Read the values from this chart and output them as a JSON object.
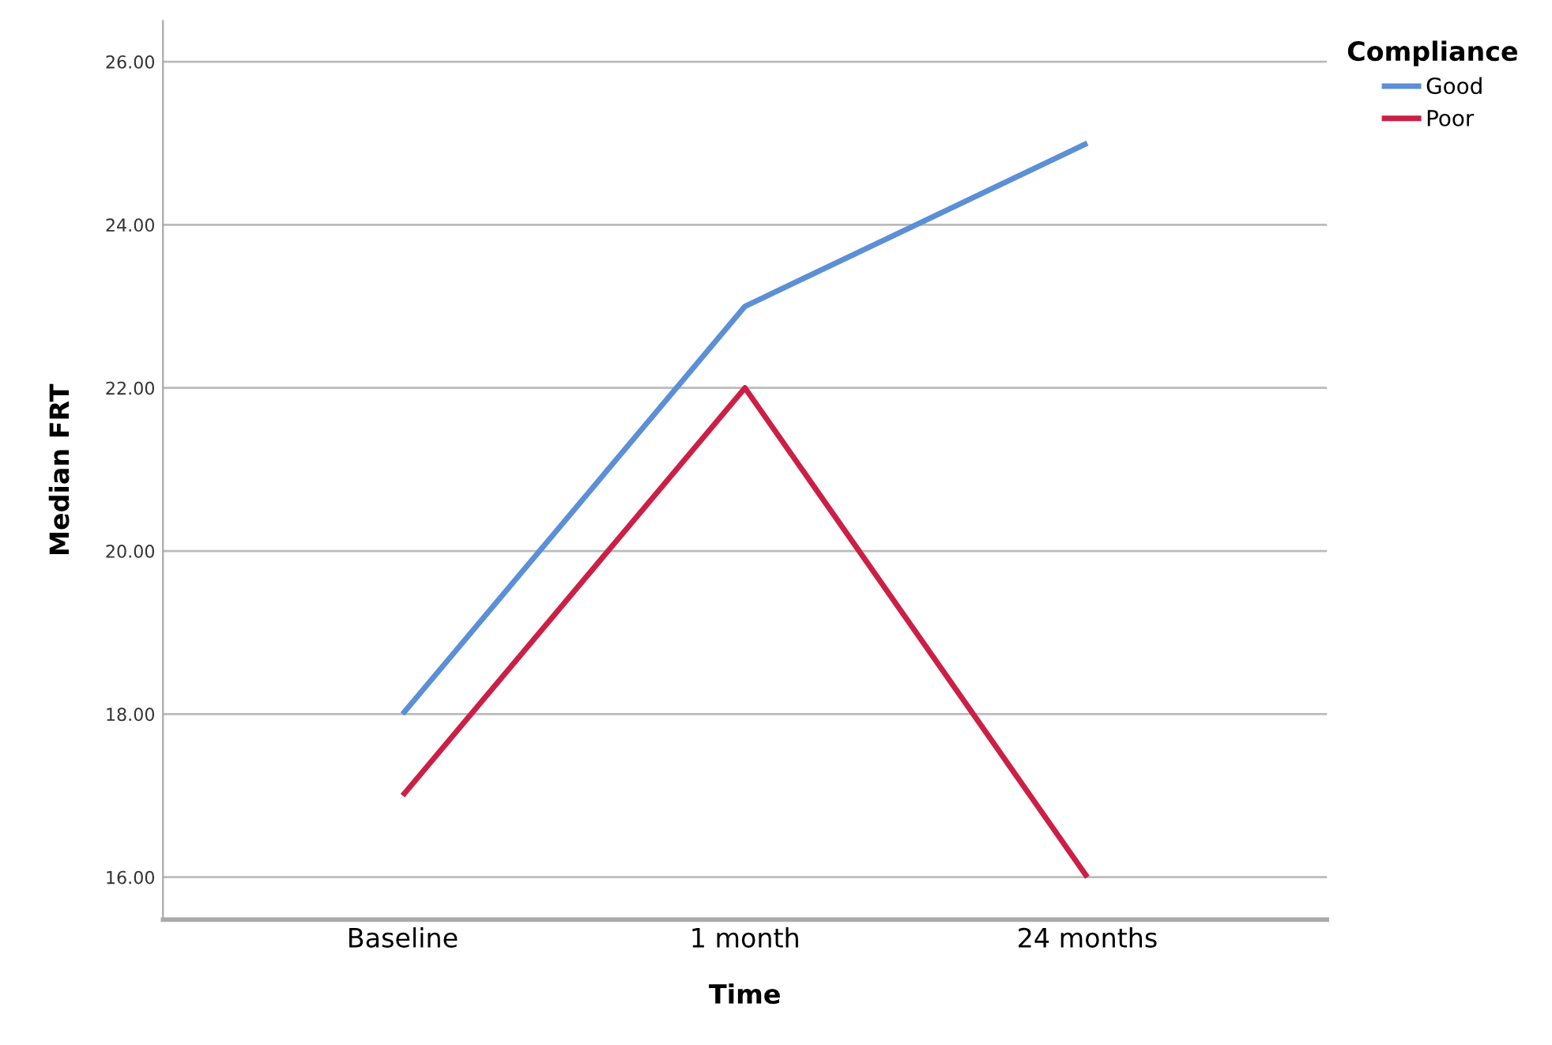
{
  "chart_data": {
    "type": "line",
    "xlabel": "Time",
    "ylabel": "Median FRT",
    "legend_title": "Compliance",
    "categories": [
      "Baseline",
      "1 month",
      "24 months"
    ],
    "series": [
      {
        "name": "Good",
        "color": "#5b8fd6",
        "values": [
          18,
          23,
          25
        ]
      },
      {
        "name": "Poor",
        "color": "#cc1f45",
        "values": [
          17,
          22,
          16
        ]
      }
    ],
    "ylim": [
      15.48,
      26.5
    ],
    "yticks": [
      {
        "value": 16,
        "label": "16.00"
      },
      {
        "value": 18,
        "label": "18.00"
      },
      {
        "value": 20,
        "label": "20.00"
      },
      {
        "value": 22,
        "label": "22.00"
      },
      {
        "value": 24,
        "label": "24.00"
      },
      {
        "value": 26,
        "label": "26.00"
      }
    ],
    "grid": "y",
    "legend": "top right",
    "marker": "none",
    "line_style": "solid"
  }
}
